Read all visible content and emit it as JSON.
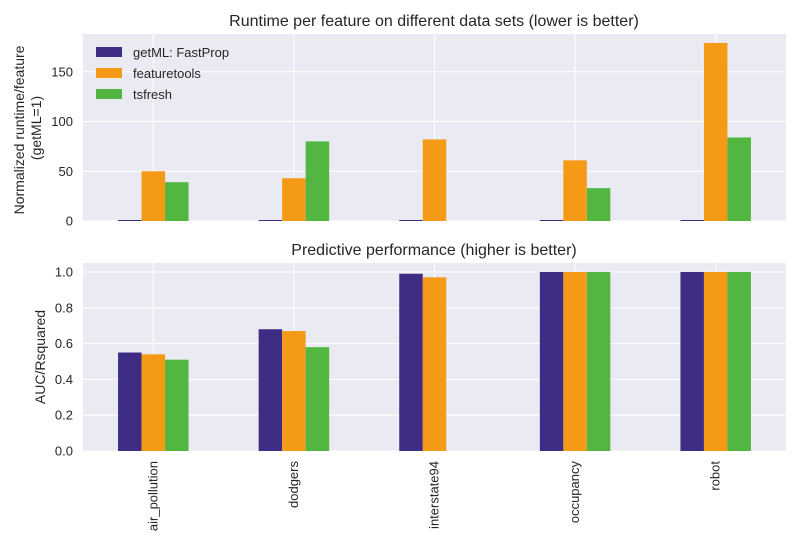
{
  "figure_bg": "#ffffff",
  "axes_bg": "#eaeaf2",
  "grid_color": "#ffffff",
  "colors": {
    "getml": "#3f2c84",
    "featuretools": "#f59a17",
    "tsfresh": "#52b641"
  },
  "chart_data": [
    {
      "type": "bar",
      "title": "Runtime per feature on different data sets (lower is better)",
      "ylabel_lines": [
        "Normalized runtime/feature",
        "(getML=1)"
      ],
      "xlabel": "",
      "categories": [
        "air_pollution",
        "dodgers",
        "interstate94",
        "occupancy",
        "robot"
      ],
      "ylim": [
        0,
        188
      ],
      "yticks": [
        0,
        50,
        100,
        150
      ],
      "ytick_labels": [
        "0",
        "50",
        "100",
        "150"
      ],
      "grid": true,
      "legend": {
        "placement": "top-left",
        "entries": [
          "getML: FastProp",
          "featuretools",
          "tsfresh"
        ]
      },
      "series": [
        {
          "name": "getML: FastProp",
          "color_key": "getml",
          "values": [
            1,
            1,
            1,
            1,
            1
          ]
        },
        {
          "name": "featuretools",
          "color_key": "featuretools",
          "values": [
            50,
            43,
            82,
            61,
            179
          ]
        },
        {
          "name": "tsfresh",
          "color_key": "tsfresh",
          "values": [
            39,
            80,
            null,
            33,
            84
          ]
        }
      ]
    },
    {
      "type": "bar",
      "title": "Predictive performance (higher is better)",
      "ylabel_lines": [
        "AUC/Rsquared"
      ],
      "xlabel": "",
      "categories": [
        "air_pollution",
        "dodgers",
        "interstate94",
        "occupancy",
        "robot"
      ],
      "ylim": [
        0,
        1.05
      ],
      "yticks": [
        0.0,
        0.2,
        0.4,
        0.6,
        0.8,
        1.0
      ],
      "ytick_labels": [
        "0.0",
        "0.2",
        "0.4",
        "0.6",
        "0.8",
        "1.0"
      ],
      "grid": true,
      "series": [
        {
          "name": "getML: FastProp",
          "color_key": "getml",
          "values": [
            0.55,
            0.68,
            0.99,
            1.0,
            1.0
          ]
        },
        {
          "name": "featuretools",
          "color_key": "featuretools",
          "values": [
            0.54,
            0.67,
            0.97,
            1.0,
            1.0
          ]
        },
        {
          "name": "tsfresh",
          "color_key": "tsfresh",
          "values": [
            0.51,
            0.58,
            null,
            1.0,
            1.0
          ]
        }
      ]
    }
  ]
}
